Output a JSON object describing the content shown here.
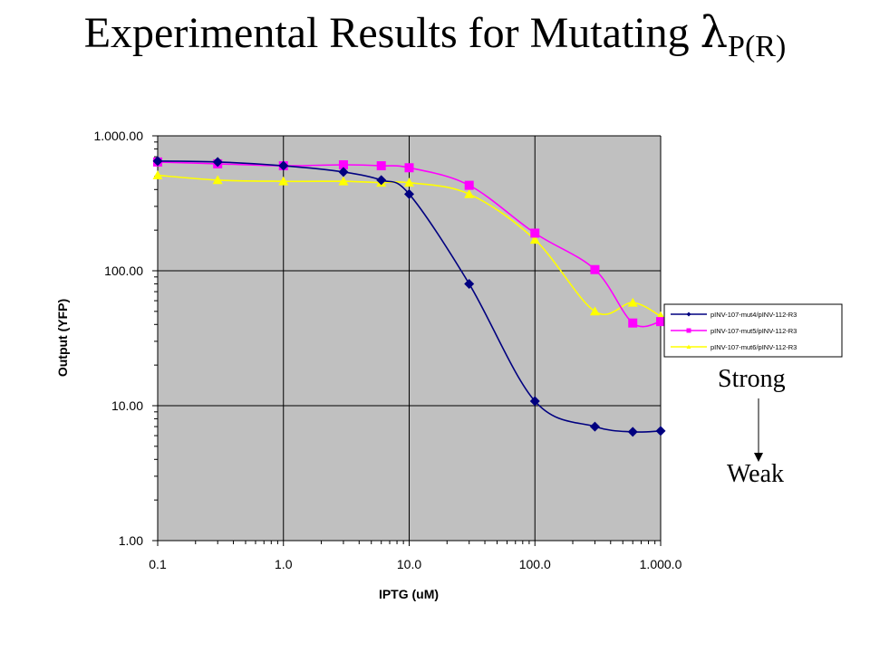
{
  "slide": {
    "title_main": "Experimental Results for Mutating ",
    "title_lambda": "λ",
    "title_sub": "P(R)",
    "annotation_top": "Strong",
    "annotation_bottom": "Weak"
  },
  "chart_data": {
    "type": "line",
    "x_scale": "log",
    "y_scale": "log",
    "xlabel": "IPTG (uM)",
    "ylabel": "Output (YFP)",
    "xlim": [
      0.1,
      1000
    ],
    "ylim": [
      1,
      1000
    ],
    "grid": true,
    "plot_background": "#c0c0c0",
    "x_ticks": [
      "0.1",
      "1.0",
      "10.0",
      "100.0",
      "1.000.0"
    ],
    "y_ticks": [
      "1.00",
      "10.00",
      "100.00",
      "1.000.00"
    ],
    "legend_position": "right",
    "series": [
      {
        "name": "pINV-107-mut4/pINV-112-R3",
        "color": "#000080",
        "marker": "diamond",
        "x": [
          0.1,
          0.3,
          1,
          3,
          6,
          10,
          30,
          100,
          300,
          600,
          1000
        ],
        "y": [
          650,
          640,
          600,
          540,
          470,
          370,
          80,
          10.8,
          7.0,
          6.4,
          6.5
        ]
      },
      {
        "name": "pINV-107-mut5/pINV-112-R3",
        "color": "#ff00ff",
        "marker": "square",
        "x": [
          0.1,
          0.3,
          1,
          3,
          6,
          10,
          30,
          100,
          300,
          600,
          1000
        ],
        "y": [
          640,
          620,
          600,
          610,
          600,
          580,
          430,
          190,
          102,
          41,
          42
        ]
      },
      {
        "name": "pINV-107-mut6/pINV-112-R3",
        "color": "#ffff00",
        "marker": "triangle",
        "x": [
          0.1,
          0.3,
          1,
          3,
          6,
          10,
          30,
          100,
          300,
          600,
          1000
        ],
        "y": [
          510,
          470,
          460,
          460,
          450,
          450,
          370,
          170,
          50,
          58,
          46
        ]
      }
    ]
  }
}
